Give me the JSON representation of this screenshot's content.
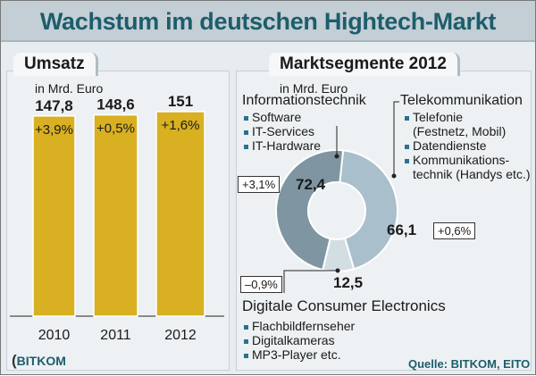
{
  "title": "Wachstum im deutschen Hightech-Markt",
  "chart_data": [
    {
      "type": "bar",
      "title": "Umsatz",
      "subtitle": "in Mrd. Euro",
      "categories": [
        "2010",
        "2011",
        "2012"
      ],
      "values": [
        147.8,
        148.6,
        151
      ],
      "value_labels": [
        "147,8",
        "148,6",
        "151"
      ],
      "growth_labels": [
        "+3,9%",
        "+0,5%",
        "+1,6%"
      ],
      "ylim": [
        0,
        151
      ],
      "color": "#d8b021"
    },
    {
      "type": "pie",
      "donut": true,
      "title": "Marktsegmente 2012",
      "subtitle": "in Mrd. Euro",
      "slices": [
        {
          "name": "Telekommunikation",
          "value": 66.1,
          "label": "66,1",
          "growth": "+0,6%",
          "color": "#a9bfcc",
          "items": [
            "Telefonie",
            "(Festnetz, Mobil)",
            "Datendienste",
            "Kommunikations-",
            "technik (Handys etc.)"
          ]
        },
        {
          "name": "Digitale Consumer Electronics",
          "value": 12.5,
          "label": "12,5",
          "growth": "–0,9%",
          "color": "#d3dee4",
          "items": [
            "Flachbildfernseher",
            "Digitalkameras",
            "MP3-Player etc."
          ]
        },
        {
          "name": "Informationstechnik",
          "value": 72.4,
          "label": "72,4",
          "growth": "+3,1%",
          "color": "#7f96a2",
          "items": [
            "Software",
            "IT-Services",
            "IT-Hardware"
          ]
        }
      ]
    }
  ],
  "logo": "BITKOM",
  "source": "Quelle: BITKOM, EITO"
}
